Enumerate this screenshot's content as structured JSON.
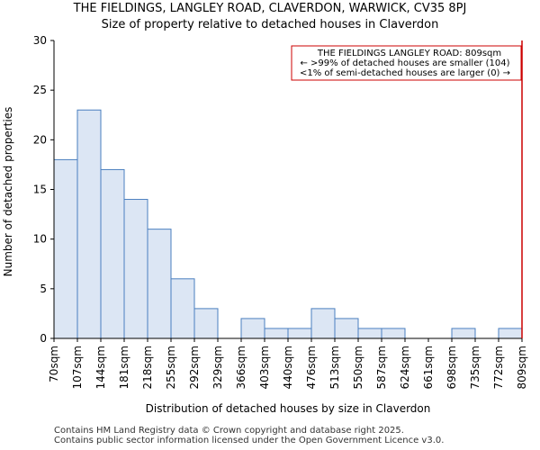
{
  "chart_data": {
    "type": "bar",
    "title": "THE FIELDINGS, LANGLEY ROAD, CLAVERDON, WARWICK, CV35 8PJ",
    "subtitle": "Size of property relative to detached houses in Claverdon",
    "xlabel": "Distribution of detached houses by size in Claverdon",
    "ylabel": "Number of detached properties",
    "bin_edges": [
      "70sqm",
      "107sqm",
      "144sqm",
      "181sqm",
      "218sqm",
      "255sqm",
      "292sqm",
      "329sqm",
      "366sqm",
      "403sqm",
      "440sqm",
      "476sqm",
      "513sqm",
      "550sqm",
      "587sqm",
      "624sqm",
      "661sqm",
      "698sqm",
      "735sqm",
      "772sqm",
      "809sqm"
    ],
    "values": [
      18,
      23,
      17,
      14,
      11,
      6,
      3,
      0,
      2,
      1,
      1,
      3,
      2,
      1,
      1,
      0,
      0,
      1,
      0,
      1
    ],
    "ylim": [
      0,
      30
    ],
    "yticks": [
      0,
      5,
      10,
      15,
      20,
      25,
      30
    ],
    "bar_color": "#dce6f4",
    "bar_edge_color": "#4a7fbf",
    "marker_color": "#cc0000",
    "marker_position_bin": 20,
    "annotation": {
      "lines": [
        "THE FIELDINGS LANGLEY ROAD: 809sqm",
        "← >99% of detached houses are smaller (104)",
        "<1% of semi-detached houses are larger (0) →"
      ],
      "placement": "top-right"
    }
  },
  "footer": {
    "line1": "Contains HM Land Registry data © Crown copyright and database right 2025.",
    "line2": "Contains public sector information licensed under the Open Government Licence v3.0."
  }
}
